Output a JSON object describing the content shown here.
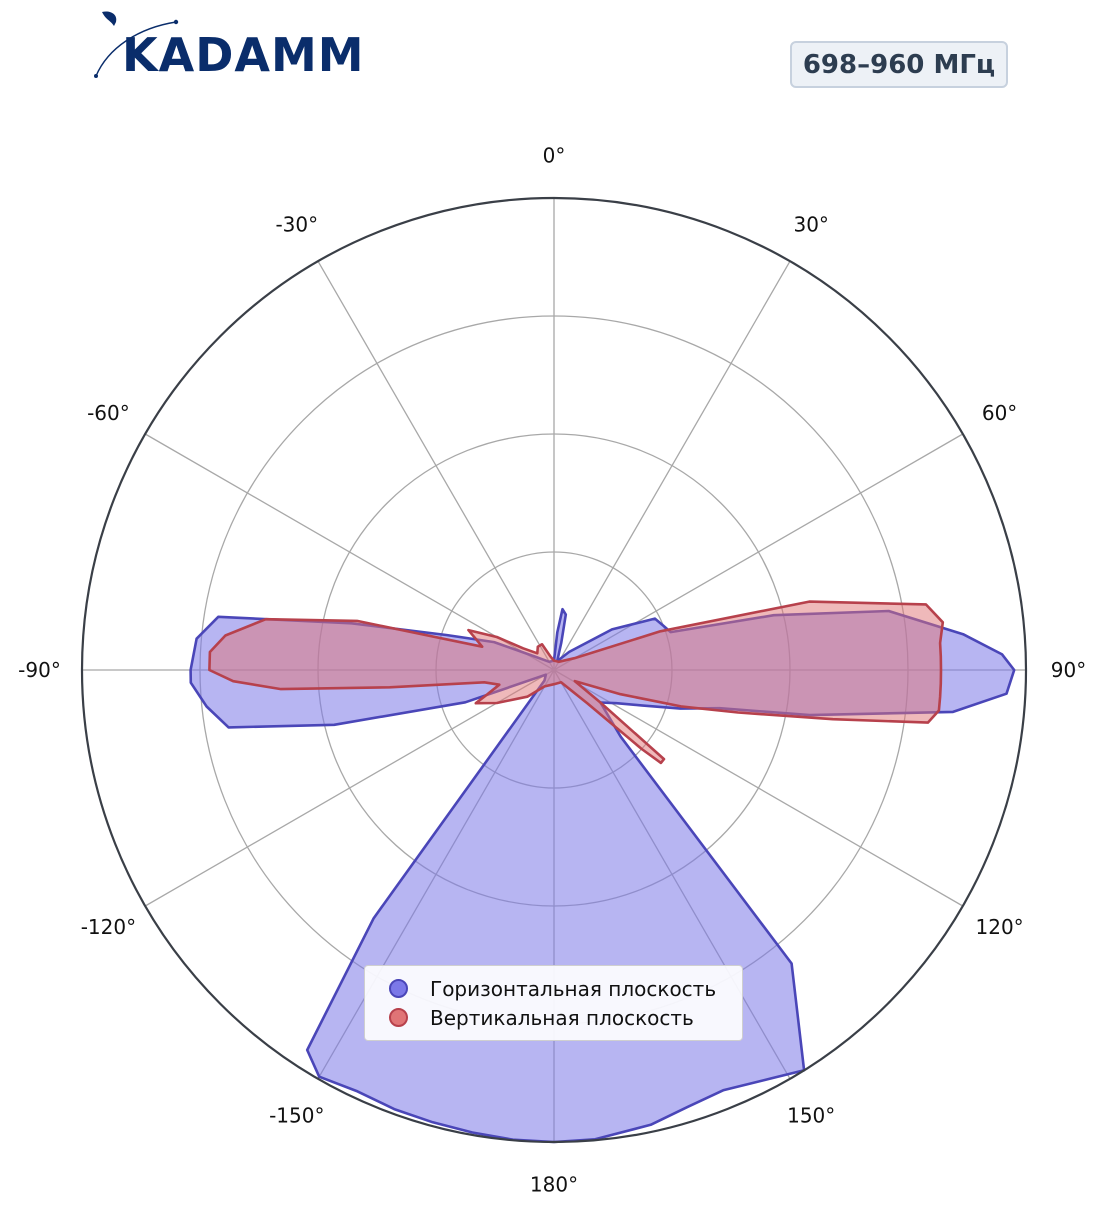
{
  "brand": {
    "logo_text": "KADAMM",
    "logo_color": "#0a2d6b"
  },
  "badge": {
    "frequency": "698–960 МГц"
  },
  "chart_data": {
    "type": "polar",
    "theta_ticks": [
      "0°",
      "30°",
      "60°",
      "90°",
      "120°",
      "150°",
      "180°",
      "-150°",
      "-120°",
      "-90°",
      "-60°",
      "-30°"
    ],
    "grid": true,
    "legend_position": "lower-center",
    "series": [
      {
        "name": "Горизонтальная плоскость",
        "color": "#4a46b8",
        "fill": "#7b78e8",
        "points": [
          [
            0,
            0.02
          ],
          [
            5,
            0.08
          ],
          [
            8,
            0.13
          ],
          [
            12,
            0.12
          ],
          [
            15,
            0.06
          ],
          [
            20,
            0.02
          ],
          [
            40,
            0.05
          ],
          [
            55,
            0.15
          ],
          [
            63,
            0.24
          ],
          [
            68,
            0.25
          ],
          [
            72,
            0.26
          ],
          [
            76,
            0.48
          ],
          [
            80,
            0.72
          ],
          [
            85,
            0.87
          ],
          [
            88,
            0.95
          ],
          [
            90,
            0.975
          ],
          [
            93,
            0.96
          ],
          [
            96,
            0.85
          ],
          [
            100,
            0.55
          ],
          [
            103,
            0.36
          ],
          [
            107,
            0.28
          ],
          [
            112,
            0.2
          ],
          [
            118,
            0.15
          ],
          [
            125,
            0.12
          ],
          [
            135,
            0.2
          ],
          [
            141,
            0.8
          ],
          [
            148,
            1.0
          ],
          [
            152,
            0.98
          ],
          [
            158,
            0.96
          ],
          [
            163,
            0.968
          ],
          [
            168,
            0.985
          ],
          [
            175,
            0.998
          ],
          [
            180,
            1.0
          ],
          [
            -175,
            0.999
          ],
          [
            -170,
            0.995
          ],
          [
            -165,
            0.992
          ],
          [
            -160,
            0.99
          ],
          [
            -155,
            0.985
          ],
          [
            -150,
            0.995
          ],
          [
            -147,
            0.96
          ],
          [
            -144,
            0.65
          ],
          [
            -138,
            0.03
          ],
          [
            -120,
            0.02
          ],
          [
            -110,
            0.2
          ],
          [
            -104,
            0.48
          ],
          [
            -100,
            0.7
          ],
          [
            -96,
            0.74
          ],
          [
            -92,
            0.77
          ],
          [
            -90,
            0.77
          ],
          [
            -85,
            0.76
          ],
          [
            -81,
            0.72
          ],
          [
            -77,
            0.44
          ],
          [
            -72,
            0.24
          ],
          [
            -65,
            0.14
          ],
          [
            -55,
            0.05
          ],
          [
            -30,
            0.02
          ],
          [
            0,
            0.02
          ]
        ]
      },
      {
        "name": "Вертикальная плоскость",
        "color": "#b7414c",
        "fill": "#e07476",
        "points": [
          [
            0,
            0.02
          ],
          [
            30,
            0.02
          ],
          [
            60,
            0.05
          ],
          [
            70,
            0.24
          ],
          [
            75,
            0.56
          ],
          [
            80,
            0.8
          ],
          [
            83,
            0.83
          ],
          [
            86,
            0.82
          ],
          [
            88,
            0.82
          ],
          [
            90,
            0.82
          ],
          [
            92,
            0.82
          ],
          [
            94,
            0.82
          ],
          [
            96,
            0.82
          ],
          [
            98,
            0.8
          ],
          [
            100,
            0.6
          ],
          [
            103,
            0.4
          ],
          [
            106,
            0.28
          ],
          [
            110,
            0.15
          ],
          [
            118,
            0.05
          ],
          [
            125,
            0.12
          ],
          [
            129,
            0.3
          ],
          [
            131,
            0.3
          ],
          [
            132,
            0.25
          ],
          [
            135,
            0.1
          ],
          [
            150,
            0.03
          ],
          [
            180,
            0.03
          ],
          [
            -150,
            0.04
          ],
          [
            -135,
            0.08
          ],
          [
            -120,
            0.14
          ],
          [
            -113,
            0.18
          ],
          [
            -110,
            0.15
          ],
          [
            -105,
            0.12
          ],
          [
            -100,
            0.15
          ],
          [
            -96,
            0.35
          ],
          [
            -94,
            0.58
          ],
          [
            -92,
            0.68
          ],
          [
            -90,
            0.73
          ],
          [
            -87,
            0.73
          ],
          [
            -84,
            0.7
          ],
          [
            -80,
            0.62
          ],
          [
            -76,
            0.43
          ],
          [
            -72,
            0.16
          ],
          [
            -68,
            0.18
          ],
          [
            -65,
            0.2
          ],
          [
            -60,
            0.14
          ],
          [
            -55,
            0.08
          ],
          [
            -45,
            0.05
          ],
          [
            -35,
            0.06
          ],
          [
            -25,
            0.06
          ],
          [
            -15,
            0.03
          ],
          [
            0,
            0.02
          ]
        ]
      }
    ]
  }
}
